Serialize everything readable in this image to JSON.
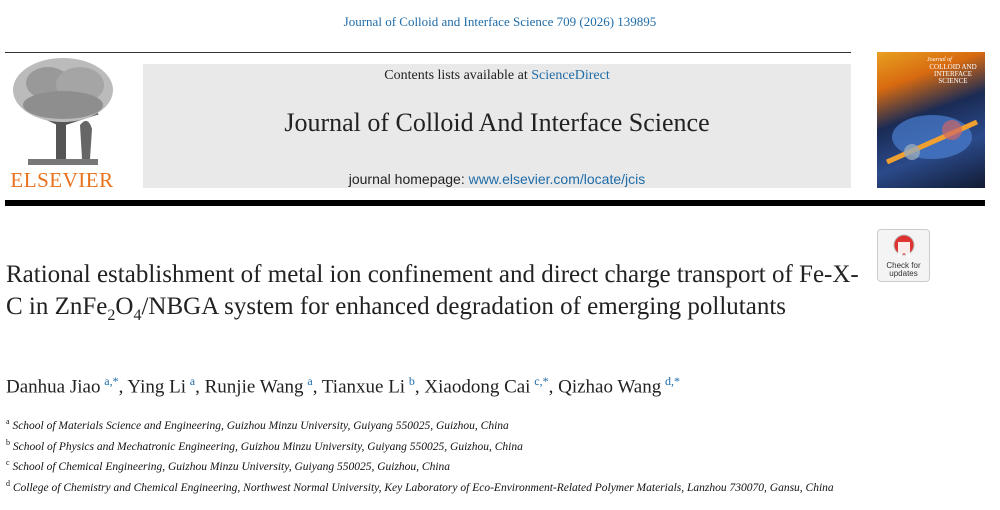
{
  "header": {
    "citation": "Journal of Colloid and Interface Science 709 (2026) 139895",
    "contents_prefix": "Contents lists available at ",
    "contents_link": "ScienceDirect",
    "journal_name": "Journal of Colloid And Interface Science",
    "homepage_prefix": "journal homepage: ",
    "homepage_link": "www.elsevier.com/locate/jcis",
    "publisher": "ELSEVIER",
    "cover_small": "Journal of",
    "cover_title": "COLLOID AND INTERFACE SCIENCE",
    "badge": "Check for updates"
  },
  "title": {
    "before": "Rational establishment of metal ion confinement and direct charge transport of Fe-X-C in ZnFe",
    "sub1": "2",
    "mid": "O",
    "sub2": "4",
    "after": "/NBGA system for enhanced degradation of emerging pollutants"
  },
  "authors": {
    "separator": ",",
    "list": [
      {
        "name": "Danhua Jiao",
        "sup": "a,*"
      },
      {
        "name": "Ying Li",
        "sup": "a"
      },
      {
        "name": "Runjie Wang",
        "sup": "a"
      },
      {
        "name": "Tianxue Li",
        "sup": "b"
      },
      {
        "name": "Xiaodong Cai",
        "sup": "c,*"
      },
      {
        "name": "Qizhao Wang",
        "sup": "d,*"
      }
    ]
  },
  "affiliations": [
    {
      "label": "a",
      "text": "School of Materials Science and Engineering, Guizhou Minzu University, Guiyang 550025, Guizhou, China"
    },
    {
      "label": "b",
      "text": "School of Physics and Mechatronic Engineering, Guizhou Minzu University, Guiyang 550025, Guizhou, China"
    },
    {
      "label": "c",
      "text": "School of Chemical Engineering, Guizhou Minzu University, Guiyang 550025, Guizhou, China"
    },
    {
      "label": "d",
      "text": "College of Chemistry and Chemical Engineering, Northwest Normal University, Key Laboratory of Eco-Environment-Related Polymer Materials, Lanzhou 730070, Gansu, China"
    }
  ]
}
